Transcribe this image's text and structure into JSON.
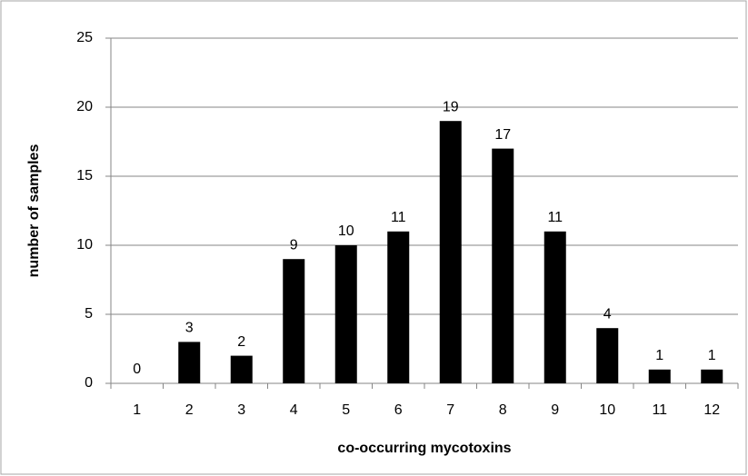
{
  "chart_data": {
    "type": "bar",
    "x_label": "co-occurring mycotoxins",
    "y_label": "number of samples",
    "categories": [
      "1",
      "2",
      "3",
      "4",
      "5",
      "6",
      "7",
      "8",
      "9",
      "10",
      "11",
      "12"
    ],
    "values": [
      0,
      3,
      2,
      9,
      10,
      11,
      19,
      17,
      11,
      4,
      1,
      1
    ],
    "color": "#000000",
    "ylim": [
      0,
      25
    ],
    "yticks": [
      0,
      5,
      10,
      15,
      20,
      25
    ],
    "grid": true
  }
}
